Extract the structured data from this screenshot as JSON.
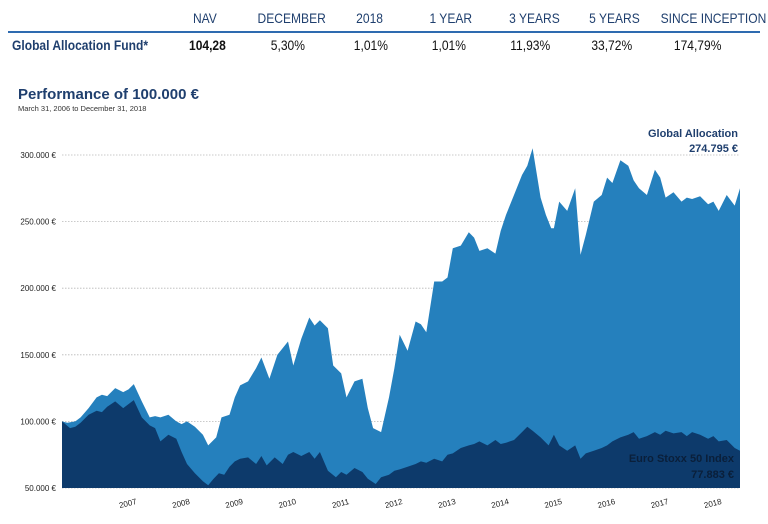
{
  "table": {
    "headers": [
      "NAV",
      "DECEMBER",
      "2018",
      "1 YEAR",
      "3 YEARS",
      "5 YEARS",
      "SINCE INCEPTION"
    ],
    "fund_name": "Global Allocation Fund*",
    "values": [
      "104,28",
      "5,30%",
      "1,01%",
      "1,01%",
      "11,93%",
      "33,72%",
      "174,79%"
    ]
  },
  "chart_data": {
    "type": "area",
    "title": "Performance of 100.000 €",
    "subtitle": "March 31, 2006 to December 31, 2018",
    "xlabel": "",
    "ylabel": "",
    "ylim": [
      50000,
      300000
    ],
    "yticks": [
      "50.000 €",
      "100.000 €",
      "150.000 €",
      "200.000 €",
      "250.000 €",
      "300.000 €"
    ],
    "ytick_values": [
      50000,
      100000,
      150000,
      200000,
      250000,
      300000
    ],
    "xticks": [
      "2007",
      "2008",
      "2009",
      "2010",
      "2011",
      "2012",
      "2013",
      "2014",
      "2015",
      "2016",
      "2017",
      "2018"
    ],
    "xtick_values": [
      2007,
      2008,
      2009,
      2010,
      2011,
      2012,
      2013,
      2014,
      2015,
      2016,
      2017,
      2018
    ],
    "xlim": [
      2006.25,
      2019.0
    ],
    "grid": true,
    "colors": {
      "global": "#2580bd",
      "stoxx": "#0d3a6b"
    },
    "series": [
      {
        "name": "Global Allocation",
        "end_label": "274.795 €",
        "x": [
          2006.25,
          2006.35,
          2006.5,
          2006.6,
          2006.75,
          2006.9,
          2007.0,
          2007.1,
          2007.25,
          2007.4,
          2007.5,
          2007.6,
          2007.75,
          2007.9,
          2008.0,
          2008.1,
          2008.25,
          2008.4,
          2008.5,
          2008.6,
          2008.75,
          2008.9,
          2009.0,
          2009.15,
          2009.25,
          2009.4,
          2009.5,
          2009.6,
          2009.75,
          2009.9,
          2010.0,
          2010.15,
          2010.3,
          2010.4,
          2010.5,
          2010.6,
          2010.75,
          2010.9,
          2011.0,
          2011.1,
          2011.25,
          2011.35,
          2011.5,
          2011.6,
          2011.75,
          2011.9,
          2012.0,
          2012.1,
          2012.25,
          2012.4,
          2012.5,
          2012.6,
          2012.75,
          2012.9,
          2013.0,
          2013.1,
          2013.25,
          2013.4,
          2013.5,
          2013.6,
          2013.75,
          2013.9,
          2014.0,
          2014.1,
          2014.25,
          2014.4,
          2014.5,
          2014.6,
          2014.75,
          2014.9,
          2015.0,
          2015.1,
          2015.25,
          2015.35,
          2015.45,
          2015.5,
          2015.6,
          2015.75,
          2015.9,
          2016.0,
          2016.1,
          2016.25,
          2016.4,
          2016.5,
          2016.6,
          2016.75,
          2016.9,
          2017.0,
          2017.1,
          2017.25,
          2017.4,
          2017.5,
          2017.6,
          2017.75,
          2017.9,
          2018.0,
          2018.1,
          2018.25,
          2018.4,
          2018.5,
          2018.6,
          2018.75,
          2018.9,
          2019.0
        ],
        "values": [
          100000,
          99000,
          100000,
          103000,
          110000,
          118000,
          120000,
          119000,
          125000,
          122000,
          124000,
          128000,
          115000,
          103000,
          104000,
          103000,
          105000,
          100000,
          98000,
          100000,
          96000,
          90000,
          82000,
          88000,
          103000,
          105000,
          118000,
          127000,
          130000,
          140000,
          148000,
          132000,
          150000,
          155000,
          160000,
          142000,
          162000,
          178000,
          172000,
          176000,
          170000,
          142000,
          136000,
          118000,
          130000,
          132000,
          110000,
          95000,
          92000,
          118000,
          140000,
          165000,
          153000,
          175000,
          173000,
          167000,
          205000,
          205000,
          208000,
          230000,
          232000,
          242000,
          238000,
          228000,
          230000,
          226000,
          243000,
          255000,
          270000,
          285000,
          292000,
          305000,
          268000,
          255000,
          245000,
          245000,
          265000,
          258000,
          275000,
          225000,
          240000,
          265000,
          270000,
          283000,
          279000,
          296000,
          292000,
          281000,
          275000,
          270000,
          289000,
          283000,
          268000,
          272000,
          265000,
          268000,
          267000,
          269000,
          263000,
          265000,
          258000,
          270000,
          262000,
          275000
        ]
      },
      {
        "name": "Euro Stoxx 50 Index",
        "end_label": "77.883 €",
        "x": [
          2006.25,
          2006.4,
          2006.5,
          2006.6,
          2006.75,
          2006.9,
          2007.0,
          2007.1,
          2007.25,
          2007.4,
          2007.5,
          2007.6,
          2007.75,
          2007.9,
          2008.0,
          2008.1,
          2008.25,
          2008.4,
          2008.5,
          2008.6,
          2008.75,
          2008.9,
          2009.0,
          2009.1,
          2009.2,
          2009.3,
          2009.4,
          2009.5,
          2009.6,
          2009.75,
          2009.9,
          2010.0,
          2010.1,
          2010.25,
          2010.4,
          2010.5,
          2010.6,
          2010.75,
          2010.9,
          2011.0,
          2011.1,
          2011.25,
          2011.4,
          2011.5,
          2011.6,
          2011.75,
          2011.9,
          2012.0,
          2012.15,
          2012.25,
          2012.4,
          2012.5,
          2012.6,
          2012.75,
          2012.9,
          2013.0,
          2013.1,
          2013.25,
          2013.4,
          2013.5,
          2013.6,
          2013.75,
          2013.9,
          2014.0,
          2014.1,
          2014.25,
          2014.4,
          2014.5,
          2014.6,
          2014.75,
          2014.9,
          2015.0,
          2015.1,
          2015.25,
          2015.4,
          2015.5,
          2015.6,
          2015.75,
          2015.9,
          2016.0,
          2016.1,
          2016.25,
          2016.4,
          2016.5,
          2016.6,
          2016.75,
          2016.9,
          2017.0,
          2017.1,
          2017.25,
          2017.4,
          2017.5,
          2017.6,
          2017.75,
          2017.9,
          2018.0,
          2018.1,
          2018.25,
          2018.4,
          2018.5,
          2018.6,
          2018.75,
          2018.9,
          2019.0
        ],
        "values": [
          100000,
          95000,
          96000,
          99000,
          105000,
          108000,
          107000,
          111000,
          115000,
          110000,
          113000,
          116000,
          103000,
          97000,
          95000,
          85000,
          90000,
          87000,
          77000,
          68000,
          61000,
          55000,
          52000,
          57000,
          61000,
          60000,
          66000,
          70000,
          72000,
          73000,
          68000,
          74000,
          67000,
          73000,
          68000,
          75000,
          77000,
          74000,
          77000,
          72000,
          77000,
          63000,
          58000,
          62000,
          60000,
          65000,
          62000,
          57000,
          53000,
          58000,
          60000,
          63000,
          64000,
          66000,
          68000,
          70000,
          69000,
          72000,
          70000,
          75000,
          76000,
          80000,
          82000,
          83000,
          85000,
          82000,
          86000,
          83000,
          84000,
          86000,
          92000,
          96000,
          93000,
          88000,
          82000,
          90000,
          82000,
          78000,
          82000,
          72000,
          76000,
          78000,
          80000,
          82000,
          85000,
          88000,
          90000,
          92000,
          87000,
          89000,
          92000,
          90000,
          93000,
          91000,
          92000,
          89000,
          92000,
          90000,
          87000,
          89000,
          85000,
          86000,
          80000,
          78000
        ]
      }
    ]
  }
}
